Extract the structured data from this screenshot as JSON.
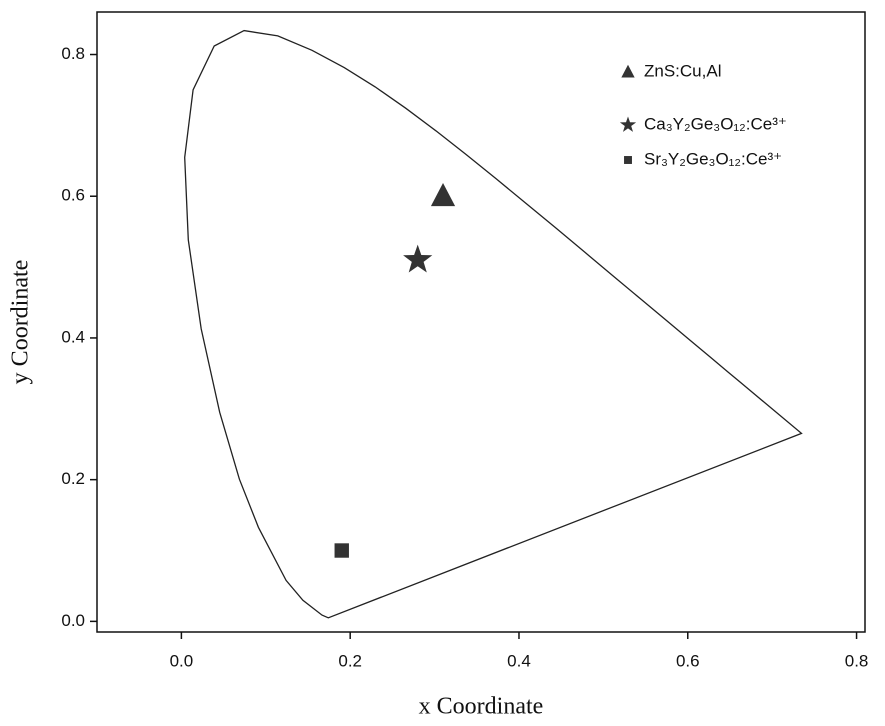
{
  "chart_data": {
    "type": "scatter",
    "xlabel": "x Coordinate",
    "ylabel": "y Coordinate",
    "xlim": [
      -0.1,
      0.81
    ],
    "ylim": [
      -0.015,
      0.86
    ],
    "xticks": [
      {
        "value": 0,
        "label": "0.0"
      },
      0.2,
      0.4,
      0.6,
      0.8
    ],
    "yticks": [
      {
        "value": 0,
        "label": "0.0"
      },
      0.2,
      0.4,
      0.6,
      0.8
    ],
    "legend": "upper right",
    "locus": {
      "color": "#222222",
      "x": [
        0.1741,
        0.1666,
        0.144,
        0.1241,
        0.0913,
        0.0687,
        0.0454,
        0.0235,
        0.0082,
        0.0039,
        0.0139,
        0.0389,
        0.0743,
        0.1142,
        0.1547,
        0.1929,
        0.2296,
        0.2658,
        0.3016,
        0.3373,
        0.3731,
        0.4087,
        0.4441,
        0.4788,
        0.5125,
        0.5448,
        0.5752,
        0.6029,
        0.627,
        0.6482,
        0.6658,
        0.6915,
        0.7347
      ],
      "y": [
        0.005,
        0.0089,
        0.0297,
        0.0578,
        0.1327,
        0.2007,
        0.295,
        0.4127,
        0.5384,
        0.6548,
        0.7502,
        0.812,
        0.8338,
        0.8262,
        0.8059,
        0.7816,
        0.7543,
        0.7243,
        0.6923,
        0.6589,
        0.6245,
        0.5896,
        0.5547,
        0.5202,
        0.4866,
        0.4544,
        0.4242,
        0.3965,
        0.3725,
        0.3514,
        0.334,
        0.3083,
        0.2653
      ]
    },
    "series": [
      {
        "name": "ZnS:Cu,Al",
        "color": "#333333",
        "marker": "triangle",
        "x": [
          0.31
        ],
        "values": [
          0.6
        ]
      },
      {
        "name": "Ca₃Y₂Ge₃O₁₂:Ce³⁺",
        "color": "#333333",
        "marker": "star",
        "x": [
          0.28
        ],
        "values": [
          0.51
        ]
      },
      {
        "name": "Sr₃Y₂Ge₃O₁₂:Ce³⁺",
        "color": "#333333",
        "marker": "square",
        "x": [
          0.19
        ],
        "values": [
          0.1
        ]
      }
    ]
  }
}
